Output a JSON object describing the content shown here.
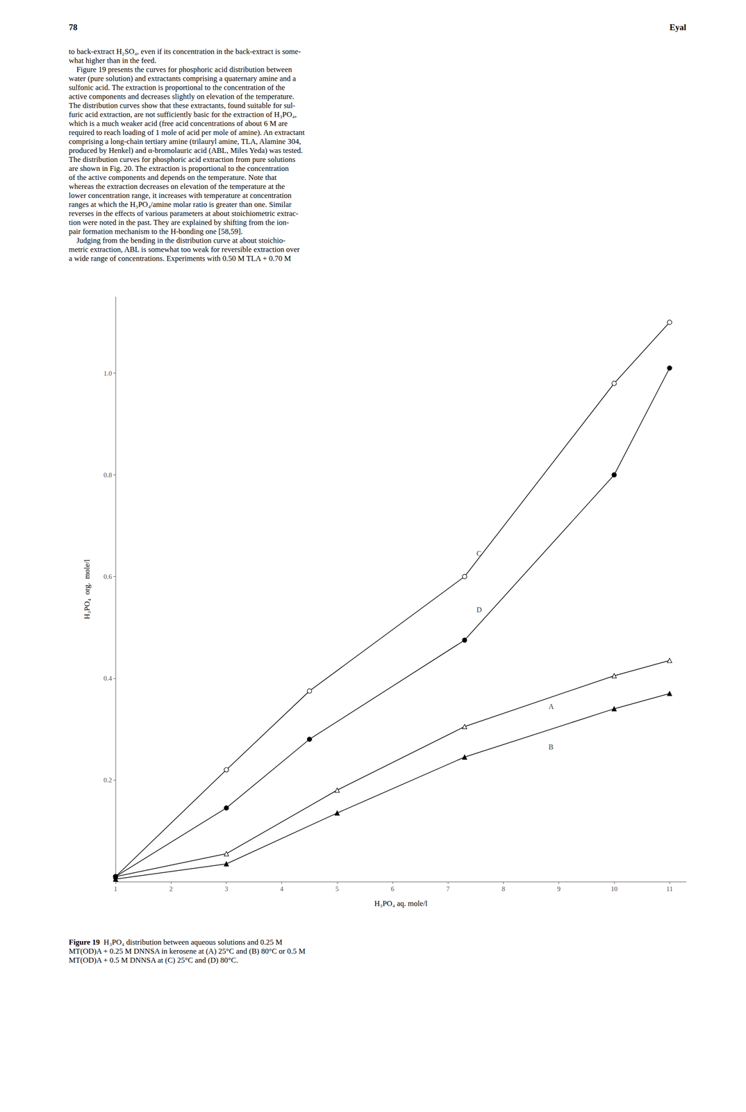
{
  "page_number": "78",
  "page_header_right": "Eyal",
  "body_text_lines": [
    "to back-extract H₂SO₄, even if its concentration in the back-extract is some-",
    "what higher than in the feed.",
    "    Figure 19 presents the curves for phosphoric acid distribution between",
    "water (pure solution) and extractants comprising a quaternary amine and a",
    "sulfonic acid. The extraction is proportional to the concentration of the",
    "active components and decreases slightly on elevation of the temperature.",
    "The distribution curves show that these extractants, found suitable for sul-",
    "furic acid extraction, are not sufficiently basic for the extraction of H₃PO₄,",
    "which is a much weaker acid (free acid concentrations of about 6 M are",
    "required to reach loading of 1 mole of acid per mole of amine). An extractant",
    "comprising a long-chain tertiary amine (trilauryl amine, TLA, Alamine 304,",
    "produced by Henkel) and α-bromolauric acid (ABL, Miles Yeda) was tested.",
    "The distribution curves for phosphoric acid extraction from pure solutions",
    "are shown in Fig. 20. The extraction is proportional to the concentration",
    "of the active components and depends on the temperature. Note that",
    "whereas the extraction decreases on elevation of the temperature at the",
    "lower concentration range, it increases with temperature at concentration",
    "ranges at which the H₃PO₄/amine molar ratio is greater than one. Similar",
    "reverses in the effects of various parameters at about stoichiometric extrac-",
    "tion were noted in the past. They are explained by shifting from the ion-",
    "pair formation mechanism to the H-bonding one [58,59].",
    "    Judging from the bending in the distribution curve at about stoichio-",
    "metric extraction, ABL is somewhat too weak for reversible extraction over",
    "a wide range of concentrations. Experiments with 0.50 M TLA + 0.70 M"
  ],
  "caption": {
    "label": "Figure 19",
    "lines": [
      "  H₃PO₄ distribution between aqueous solutions and 0.25 M",
      "MT(OD)A + 0.25 M DNNSA in kerosene at (A) 25°C and (B) 80°C or 0.5 M",
      "MT(OD)A + 0.5 M DNNSA at (C) 25°C and (D) 80°C."
    ]
  },
  "chart_data": {
    "type": "line",
    "xlabel": "H₃PO₄ aq. mole/l",
    "ylabel": "H₃PO₄  org.  mole/l",
    "xlim": [
      1,
      11.3
    ],
    "xticks": [
      1,
      2,
      3,
      4,
      5,
      6,
      7,
      8,
      9,
      10,
      11
    ],
    "ylim": [
      0,
      1.15
    ],
    "yticks": [
      0.2,
      0.4,
      0.6,
      0.8,
      {
        "value": 1.0,
        "label": "1.0"
      }
    ],
    "grid": false,
    "series": [
      {
        "x": [
          1.0,
          3.0,
          5.0,
          7.3,
          10.0,
          11.0
        ],
        "values": [
          0.01,
          0.055,
          0.18,
          0.305,
          0.405,
          0.435
        ],
        "marker": "triangle_open",
        "color": "#000000"
      },
      {
        "x": [
          1.0,
          3.0,
          5.0,
          7.3,
          10.0,
          11.0
        ],
        "values": [
          0.005,
          0.035,
          0.135,
          0.245,
          0.34,
          0.37
        ],
        "marker": "triangle_filled",
        "color": "#000000"
      },
      {
        "x": [
          1.0,
          3.0,
          4.5,
          7.3,
          10.0,
          11.0
        ],
        "values": [
          0.01,
          0.22,
          0.375,
          0.6,
          0.98,
          1.1
        ],
        "marker": "circle_open",
        "color": "#000000"
      },
      {
        "x": [
          1.0,
          3.0,
          4.5,
          7.3,
          10.0,
          11.0
        ],
        "values": [
          0.01,
          0.145,
          0.28,
          0.475,
          0.8,
          1.01
        ],
        "marker": "circle_filled",
        "color": "#000000"
      }
    ],
    "annotations": [
      {
        "text": "A",
        "x": 8.8,
        "y": 0.345
      },
      {
        "text": "B",
        "x": 8.8,
        "y": 0.265
      },
      {
        "text": "C",
        "x": 7.5,
        "y": 0.645
      },
      {
        "text": "D",
        "x": 7.5,
        "y": 0.535
      }
    ]
  }
}
